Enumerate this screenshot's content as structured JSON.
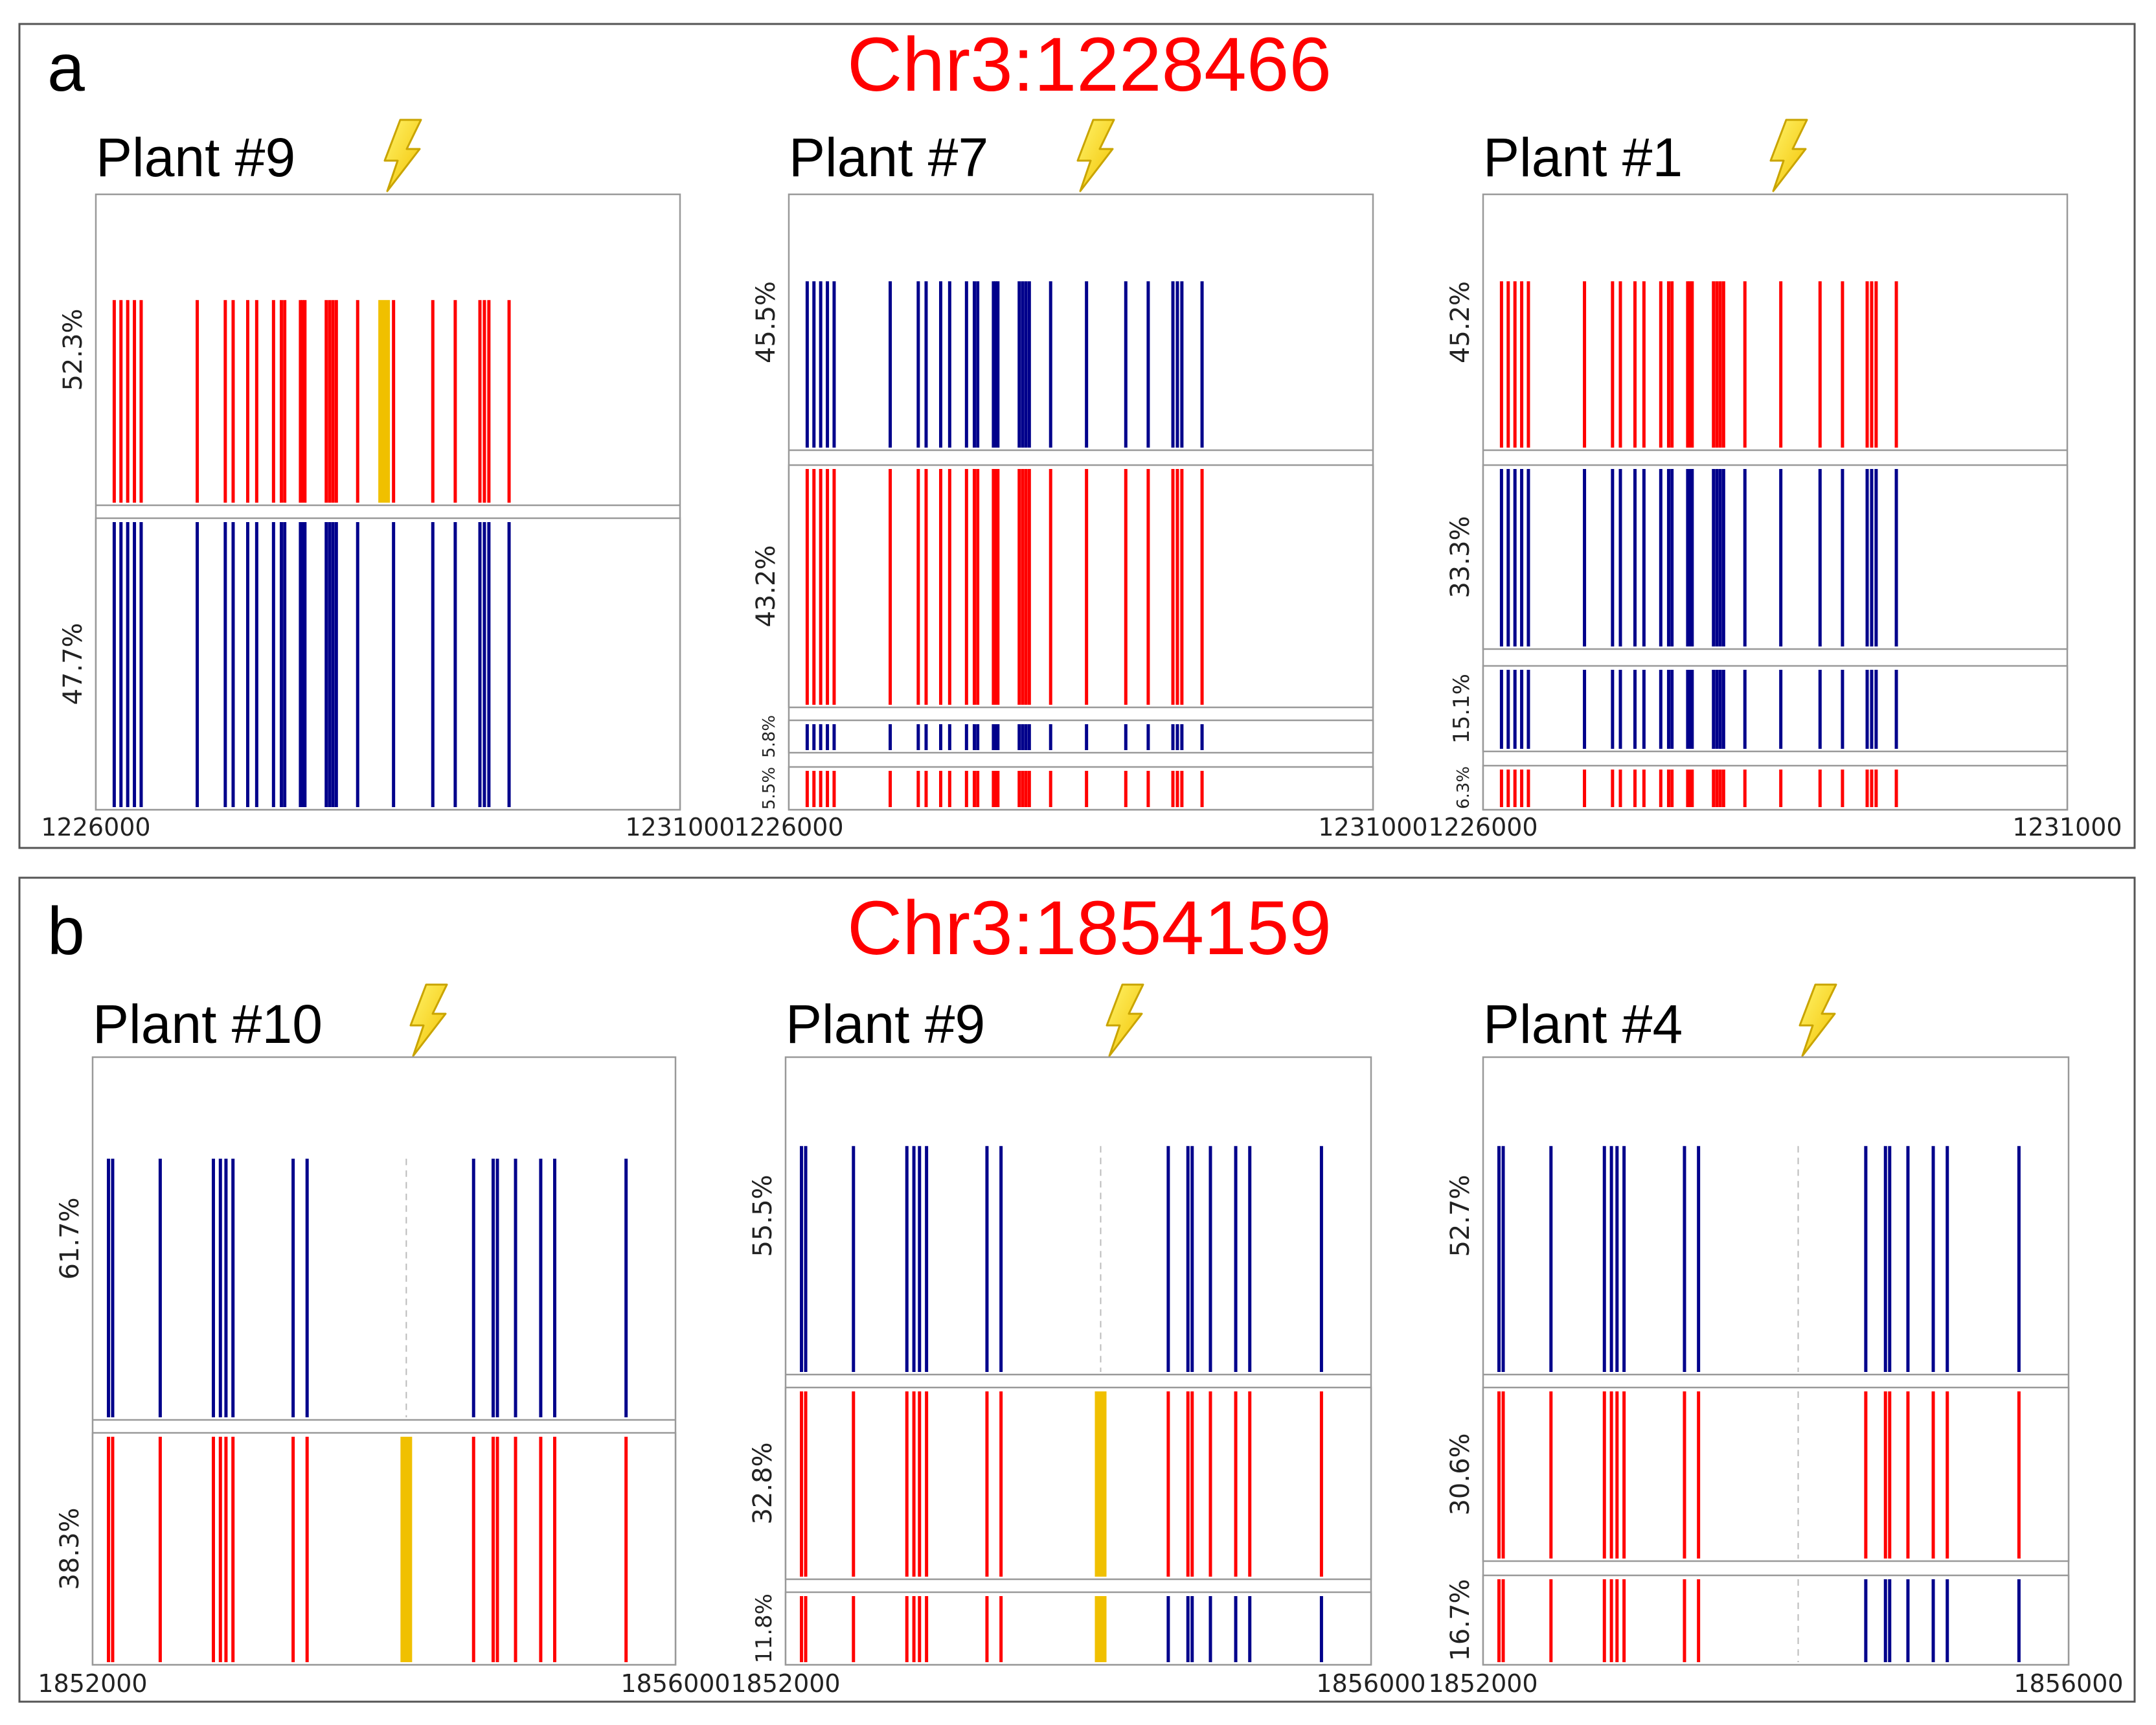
{
  "chart_data": [
    {
      "type": "haplotype-bars",
      "panel_letter": "a",
      "title": "Chr3:1228466",
      "x_range": [
        1226000,
        1231000
      ],
      "x_tick_labels": [
        "1226000",
        "1231000"
      ],
      "variant_positions": [
        1226060,
        1226120,
        1226180,
        1226240,
        1226300,
        1226800,
        1227050,
        1227120,
        1227250,
        1227330,
        1227480,
        1227550,
        1227580,
        1227720,
        1227740,
        1227760,
        1227950,
        1227980,
        1228010,
        1228040,
        1228230,
        1228550,
        1228900,
        1229100,
        1229320,
        1229360,
        1229400,
        1229580
      ],
      "mutation_position": 1228466,
      "plants": [
        {
          "label": "Plant #9",
          "haplotypes": [
            {
              "percent": "52.3%",
              "color": "red",
              "mutation_highlight": true
            },
            {
              "percent": "47.7%",
              "color": "blue",
              "mutation_highlight": false
            }
          ]
        },
        {
          "label": "Plant #7",
          "haplotypes": [
            {
              "percent": "45.5%",
              "color": "blue",
              "mutation_highlight": false
            },
            {
              "percent": "43.2%",
              "color": "red",
              "mutation_highlight": false
            },
            {
              "percent": "5.8%",
              "color": "blue",
              "mutation_highlight": false
            },
            {
              "percent": "5.5%",
              "color": "red",
              "mutation_highlight": false
            }
          ]
        },
        {
          "label": "Plant #1",
          "haplotypes": [
            {
              "percent": "45.2%",
              "color": "red",
              "mutation_highlight": false
            },
            {
              "percent": "33.3%",
              "color": "blue",
              "mutation_highlight": false
            },
            {
              "percent": "15.1%",
              "color": "blue",
              "mutation_highlight": false
            },
            {
              "percent": "6.3%",
              "color": "red",
              "mutation_highlight": false
            }
          ]
        }
      ]
    },
    {
      "type": "haplotype-bars",
      "panel_letter": "b",
      "title": "Chr3:1854159",
      "x_range": [
        1852000,
        1856000
      ],
      "x_tick_labels": [
        "1852000",
        "1856000"
      ],
      "variant_positions": [
        1852030,
        1852060,
        1852400,
        1852780,
        1852830,
        1852870,
        1852920,
        1853350,
        1853450,
        1854640,
        1854780,
        1854810,
        1854940,
        1855120,
        1855220,
        1855730
      ],
      "mutation_position": 1854159,
      "plants": [
        {
          "label": "Plant #10",
          "haplotypes": [
            {
              "percent": "61.7%",
              "color": "blue",
              "mutation_highlight": false
            },
            {
              "percent": "38.3%",
              "color": "red",
              "mutation_highlight": true
            }
          ]
        },
        {
          "label": "Plant #9",
          "haplotypes": [
            {
              "percent": "55.5%",
              "color": "blue",
              "mutation_highlight": false
            },
            {
              "percent": "32.8%",
              "color": "red",
              "mutation_highlight": true
            },
            {
              "percent": "11.8%",
              "color": "mixed",
              "left_color": "red",
              "right_color": "blue",
              "mutation_highlight": true
            }
          ]
        },
        {
          "label": "Plant #4",
          "haplotypes": [
            {
              "percent": "52.7%",
              "color": "blue",
              "mutation_highlight": false
            },
            {
              "percent": "30.6%",
              "color": "red",
              "mutation_highlight": false
            },
            {
              "percent": "16.7%",
              "color": "mixed",
              "left_color": "red",
              "right_color": "blue",
              "mutation_highlight": false
            }
          ]
        }
      ]
    }
  ],
  "colors": {
    "red": "#ff0000",
    "blue": "#00008b",
    "highlight": "#f0c000",
    "title": "#ff0000",
    "frame": "#999999"
  },
  "icon": "lightning-icon"
}
